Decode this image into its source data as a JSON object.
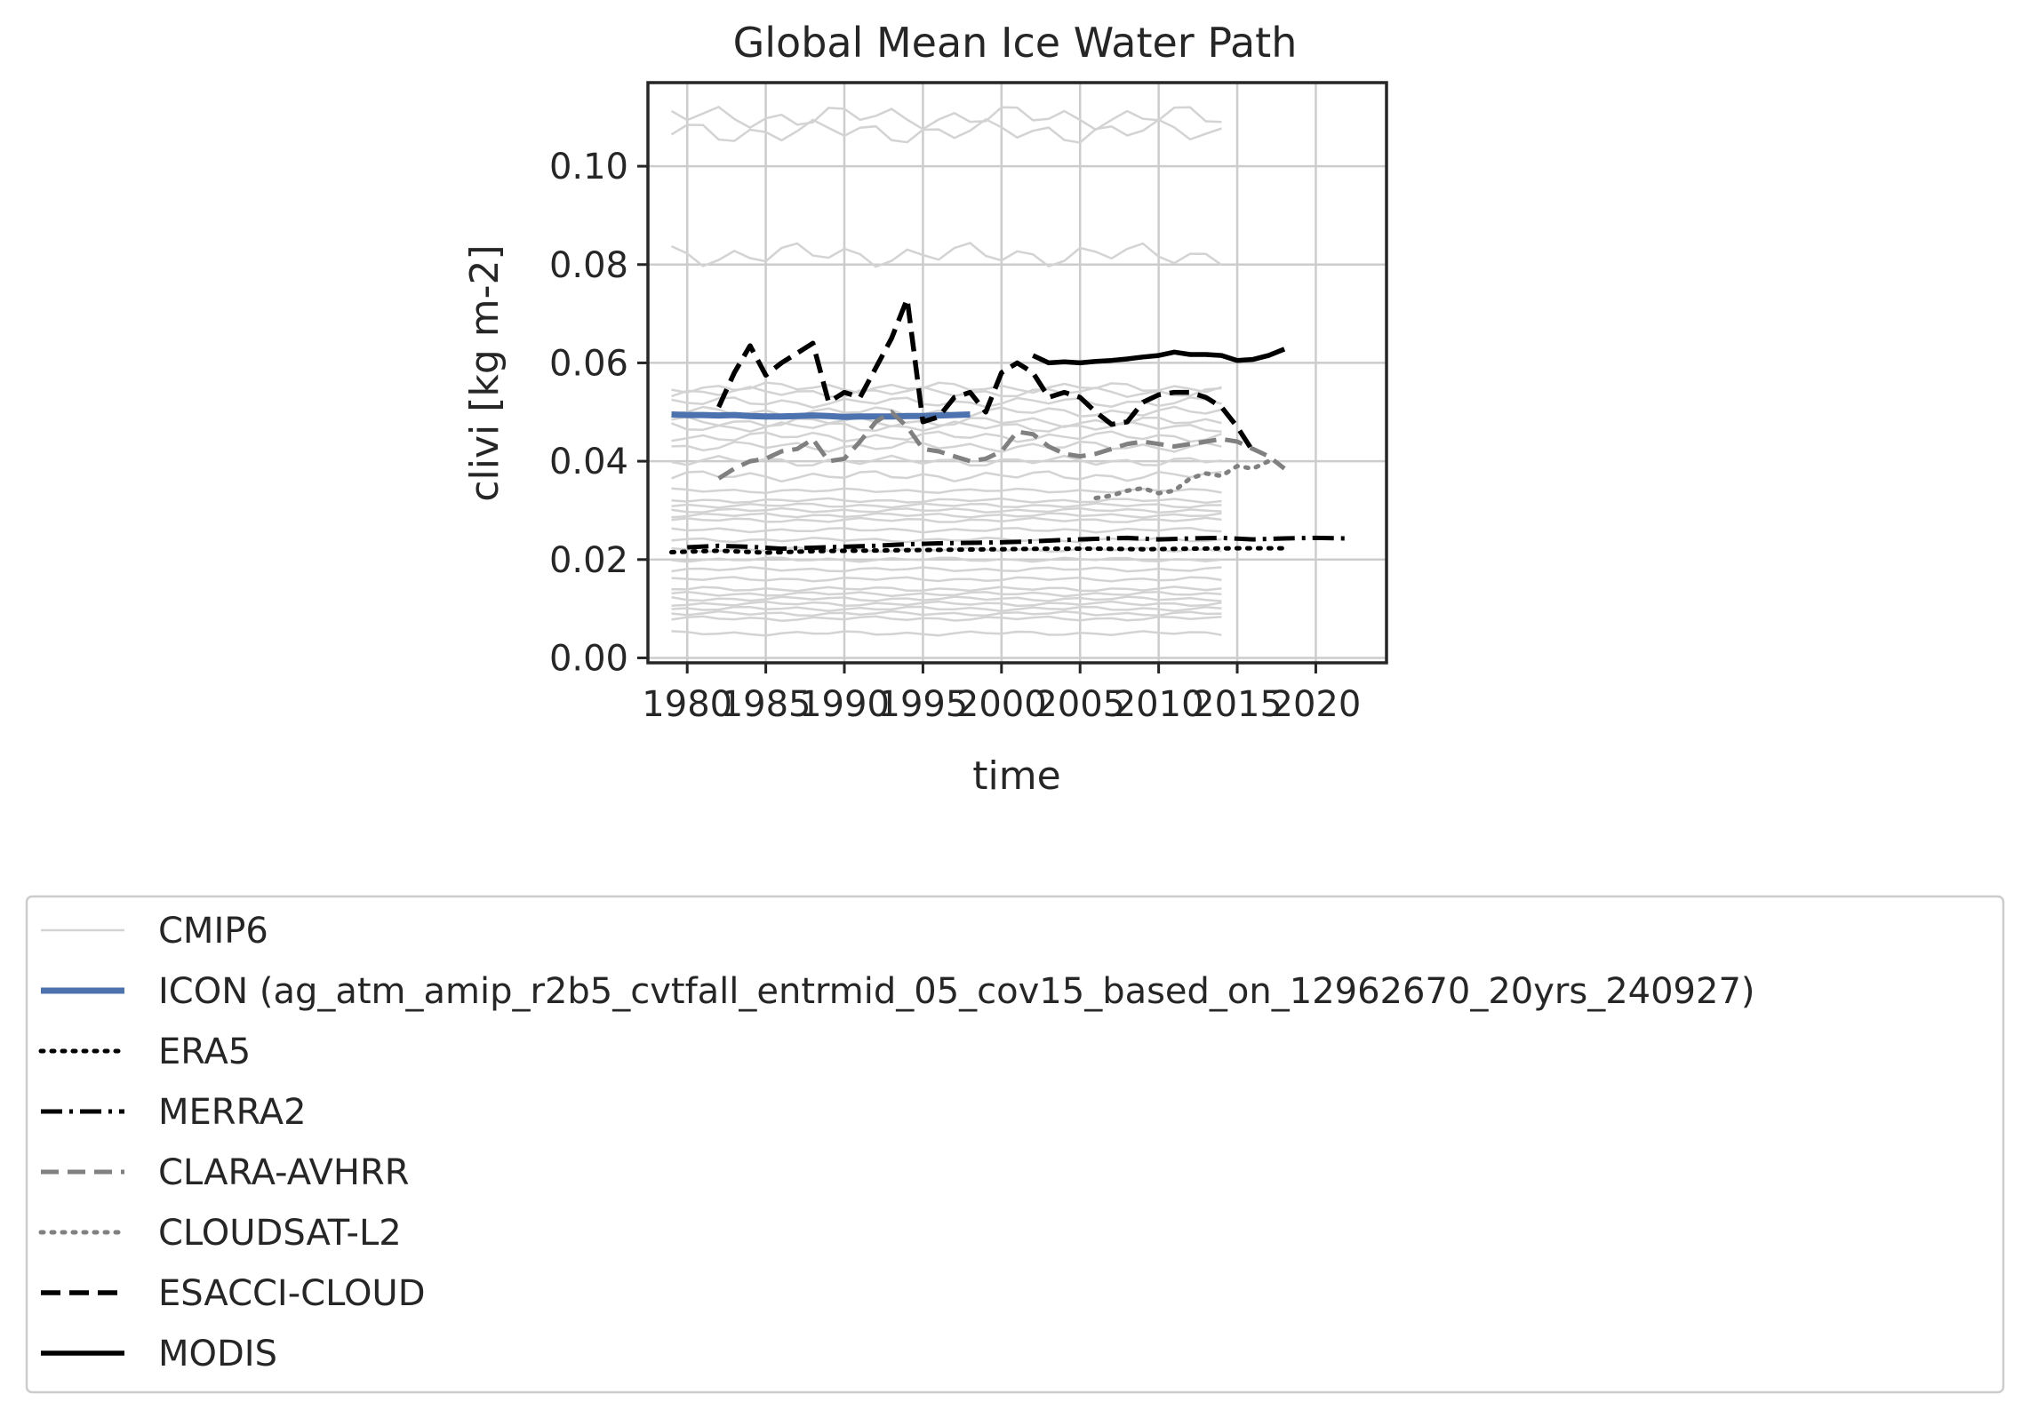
{
  "chart_data": {
    "type": "line",
    "title": "Global Mean Ice Water Path",
    "xlabel": "time",
    "ylabel": "clivi [kg m-2]",
    "xlim": [
      1977.5,
      2024.5
    ],
    "ylim": [
      -0.001,
      0.117
    ],
    "xticks": [
      "1980",
      "1985",
      "1990",
      "1995",
      "2000",
      "2005",
      "2010",
      "2015",
      "2020"
    ],
    "yticks": [
      "0.00",
      "0.02",
      "0.04",
      "0.06",
      "0.08",
      "0.10"
    ],
    "grid": true,
    "legend_placement": "bottom",
    "cmip6_name": "CMIP6",
    "cmip6_color": "#d3d3d3",
    "cmip6_x_range": [
      1979,
      2014
    ],
    "cmip6_levels": [
      0.11,
      0.107,
      0.082,
      0.055,
      0.054,
      0.052,
      0.05,
      0.048,
      0.047,
      0.045,
      0.043,
      0.04,
      0.037,
      0.034,
      0.032,
      0.031,
      0.03,
      0.029,
      0.028,
      0.026,
      0.024,
      0.022,
      0.02,
      0.018,
      0.016,
      0.014,
      0.013,
      0.012,
      0.011,
      0.01,
      0.009,
      0.008,
      0.005
    ],
    "series": [
      {
        "name": "ICON (ag_atm_amip_r2b5_cvtfall_entrmid_05_cov15_based_on_12962670_20yrs_240927)",
        "color": "#4c72b0",
        "style": "solid",
        "width": 3,
        "x": [
          1979,
          1980,
          1981,
          1982,
          1983,
          1984,
          1985,
          1986,
          1987,
          1988,
          1989,
          1990,
          1991,
          1992,
          1993,
          1994,
          1995,
          1996,
          1997,
          1998
        ],
        "y": [
          0.0495,
          0.0494,
          0.0494,
          0.0493,
          0.0494,
          0.0492,
          0.0491,
          0.0491,
          0.0492,
          0.0493,
          0.0492,
          0.049,
          0.0491,
          0.0491,
          0.0491,
          0.0492,
          0.0492,
          0.0493,
          0.0494,
          0.0495
        ]
      },
      {
        "name": "ERA5",
        "color": "#000000",
        "style": "dotted",
        "width": 2,
        "x": [
          1979,
          1982,
          1985,
          1988,
          1991,
          1994,
          1997,
          2000,
          2003,
          2006,
          2009,
          2012,
          2015,
          2018
        ],
        "y": [
          0.0215,
          0.0218,
          0.0214,
          0.0217,
          0.0218,
          0.0219,
          0.022,
          0.0221,
          0.0222,
          0.0222,
          0.0221,
          0.0222,
          0.0223,
          0.0223
        ]
      },
      {
        "name": "MERRA2",
        "color": "#000000",
        "style": "dashdot",
        "width": 2,
        "x": [
          1980,
          1982,
          1984,
          1986,
          1988,
          1990,
          1992,
          1994,
          1996,
          1998,
          2000,
          2002,
          2004,
          2006,
          2008,
          2010,
          2012,
          2014,
          2016,
          2018,
          2020,
          2022
        ],
        "y": [
          0.0225,
          0.0228,
          0.0226,
          0.0222,
          0.0224,
          0.0226,
          0.0228,
          0.0231,
          0.0233,
          0.0234,
          0.0235,
          0.0237,
          0.024,
          0.0242,
          0.0244,
          0.0241,
          0.0243,
          0.0244,
          0.0241,
          0.0243,
          0.0244,
          0.0243
        ]
      },
      {
        "name": "CLARA-AVHRR",
        "color": "#808080",
        "style": "dashed",
        "width": 2,
        "x": [
          1982,
          1983,
          1984,
          1985,
          1986,
          1987,
          1988,
          1989,
          1990,
          1991,
          1992,
          1993,
          1994,
          1995,
          1996,
          1997,
          1998,
          1999,
          2000,
          2001,
          2002,
          2003,
          2004,
          2005,
          2006,
          2007,
          2008,
          2009,
          2010,
          2011,
          2012,
          2013,
          2014,
          2015,
          2016,
          2017,
          2018
        ],
        "y": [
          0.0365,
          0.0385,
          0.04,
          0.0405,
          0.042,
          0.0425,
          0.0445,
          0.04,
          0.0405,
          0.044,
          0.048,
          0.05,
          0.047,
          0.0425,
          0.042,
          0.041,
          0.04,
          0.0405,
          0.042,
          0.046,
          0.0455,
          0.043,
          0.0415,
          0.041,
          0.0415,
          0.0425,
          0.0435,
          0.044,
          0.0435,
          0.043,
          0.0435,
          0.044,
          0.0445,
          0.044,
          0.0425,
          0.041,
          0.0385
        ]
      },
      {
        "name": "CLOUDSAT-L2",
        "color": "#808080",
        "style": "dotted",
        "width": 2,
        "x": [
          2006,
          2007,
          2008,
          2009,
          2010,
          2011,
          2012,
          2013,
          2014,
          2015,
          2016,
          2017
        ],
        "y": [
          0.0325,
          0.033,
          0.034,
          0.0345,
          0.0335,
          0.034,
          0.0365,
          0.0375,
          0.037,
          0.039,
          0.0385,
          0.04
        ]
      },
      {
        "name": "ESACCI-CLOUD",
        "color": "#000000",
        "style": "dashed",
        "width": 2.5,
        "x": [
          1982,
          1983,
          1984,
          1985,
          1986,
          1987,
          1988,
          1989,
          1990,
          1991,
          1992,
          1993,
          1994,
          1995,
          1996,
          1997,
          1998,
          1999,
          2000,
          2001,
          2002,
          2003,
          2004,
          2005,
          2006,
          2007,
          2008,
          2009,
          2010,
          2011,
          2012,
          2013,
          2014,
          2015,
          2016
        ],
        "y": [
          0.051,
          0.058,
          0.0635,
          0.0575,
          0.06,
          0.062,
          0.064,
          0.052,
          0.054,
          0.053,
          0.059,
          0.065,
          0.073,
          0.048,
          0.049,
          0.053,
          0.054,
          0.05,
          0.058,
          0.06,
          0.058,
          0.053,
          0.054,
          0.053,
          0.05,
          0.0475,
          0.048,
          0.052,
          0.0535,
          0.054,
          0.054,
          0.053,
          0.051,
          0.047,
          0.042
        ]
      },
      {
        "name": "MODIS",
        "color": "#000000",
        "style": "solid",
        "width": 2.5,
        "x": [
          2002,
          2003,
          2004,
          2005,
          2006,
          2007,
          2008,
          2009,
          2010,
          2011,
          2012,
          2013,
          2014,
          2015,
          2016,
          2017,
          2018
        ],
        "y": [
          0.0615,
          0.06,
          0.0602,
          0.06,
          0.0603,
          0.0605,
          0.0608,
          0.0612,
          0.0615,
          0.0622,
          0.0617,
          0.0617,
          0.0615,
          0.0605,
          0.0607,
          0.0615,
          0.0628
        ]
      }
    ]
  }
}
